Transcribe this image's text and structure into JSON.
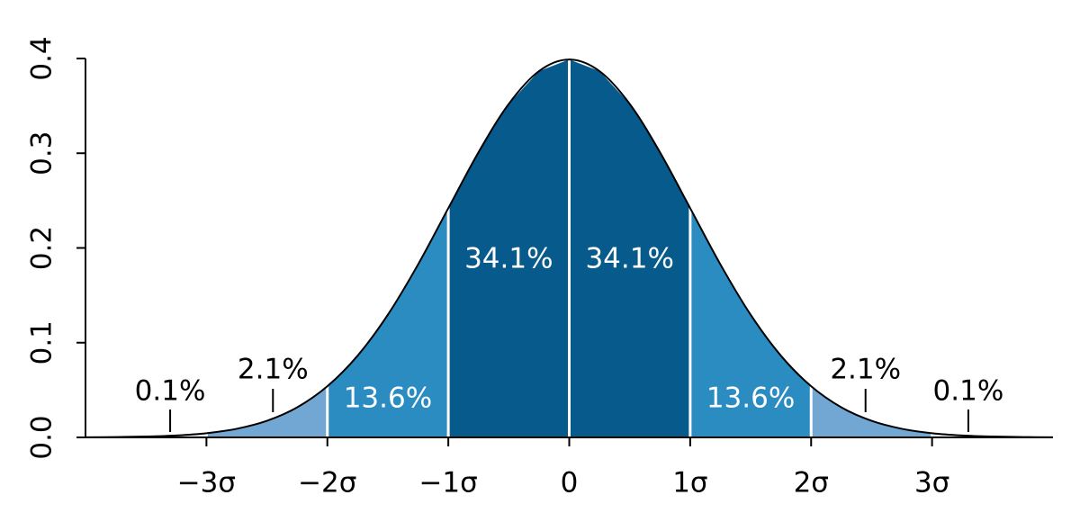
{
  "chart_data": {
    "type": "density",
    "x": [
      -4,
      -3.75,
      -3.5,
      -3.25,
      -3,
      -2.75,
      -2.5,
      -2.25,
      -2,
      -1.75,
      -1.5,
      -1.25,
      -1,
      -0.75,
      -0.5,
      -0.25,
      0,
      0.25,
      0.5,
      0.75,
      1,
      1.25,
      1.5,
      1.75,
      2,
      2.25,
      2.5,
      2.75,
      3,
      3.25,
      3.5,
      3.75,
      4
    ],
    "values": [
      0.0001,
      0.0004,
      0.0009,
      0.002,
      0.0044,
      0.0091,
      0.0175,
      0.0317,
      0.054,
      0.0863,
      0.1295,
      0.1826,
      0.242,
      0.3011,
      0.3521,
      0.3867,
      0.3989,
      0.3867,
      0.3521,
      0.3011,
      0.242,
      0.1826,
      0.1295,
      0.0863,
      0.054,
      0.0317,
      0.0175,
      0.0091,
      0.0044,
      0.002,
      0.0009,
      0.0004,
      0.0001
    ],
    "color": "#000000",
    "regions": {
      "edges": [
        -4,
        -3,
        -2,
        -1,
        0,
        1,
        2,
        3,
        4
      ],
      "values": [
        0.1,
        2.1,
        13.6,
        34.1,
        34.1,
        13.6,
        2.1,
        0.1
      ],
      "value_labels": [
        "0.1%",
        "2.1%",
        "13.6%",
        "34.1%",
        "34.1%",
        "13.6%",
        "2.1%",
        "0.1%"
      ],
      "colors": [
        "#e6eef6",
        "#72a7d3",
        "#2b8cc1",
        "#065a8c",
        "#065a8c",
        "#2b8cc1",
        "#72a7d3",
        "#e6eef6"
      ]
    },
    "xlim": [
      -4,
      4
    ],
    "ylim": [
      0,
      0.4
    ],
    "xticks": [
      {
        "value": -3,
        "label": "−3σ"
      },
      {
        "value": -2,
        "label": "−2σ"
      },
      {
        "value": -1,
        "label": "−1σ"
      },
      0,
      {
        "value": 1,
        "label": "1σ"
      },
      {
        "value": 2,
        "label": "2σ"
      },
      {
        "value": 3,
        "label": "3σ"
      }
    ],
    "yticks": [
      {
        "value": 0,
        "label": "0.0"
      },
      0.1,
      0.2,
      0.3,
      0.4
    ]
  }
}
